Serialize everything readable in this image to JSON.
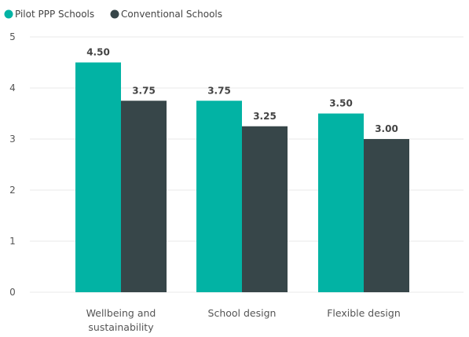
{
  "chart_data": {
    "type": "bar",
    "categories": [
      [
        "Wellbeing and",
        "sustainability"
      ],
      [
        "School design"
      ],
      [
        "Flexible design"
      ]
    ],
    "series": [
      {
        "name": "Pilot PPP Schools",
        "values": [
          4.5,
          3.75,
          3.5
        ],
        "labels": [
          "4.50",
          "3.75",
          "3.50"
        ],
        "color": "#02b3a4"
      },
      {
        "name": "Conventional Schools",
        "values": [
          3.75,
          3.25,
          3.0
        ],
        "labels": [
          "3.75",
          "3.25",
          "3.00"
        ],
        "color": "#374649"
      }
    ],
    "yticks": [
      "0",
      "1",
      "2",
      "3",
      "4",
      "5"
    ],
    "ylim": [
      0,
      5
    ],
    "grid": true,
    "legend_position": "top-left"
  }
}
